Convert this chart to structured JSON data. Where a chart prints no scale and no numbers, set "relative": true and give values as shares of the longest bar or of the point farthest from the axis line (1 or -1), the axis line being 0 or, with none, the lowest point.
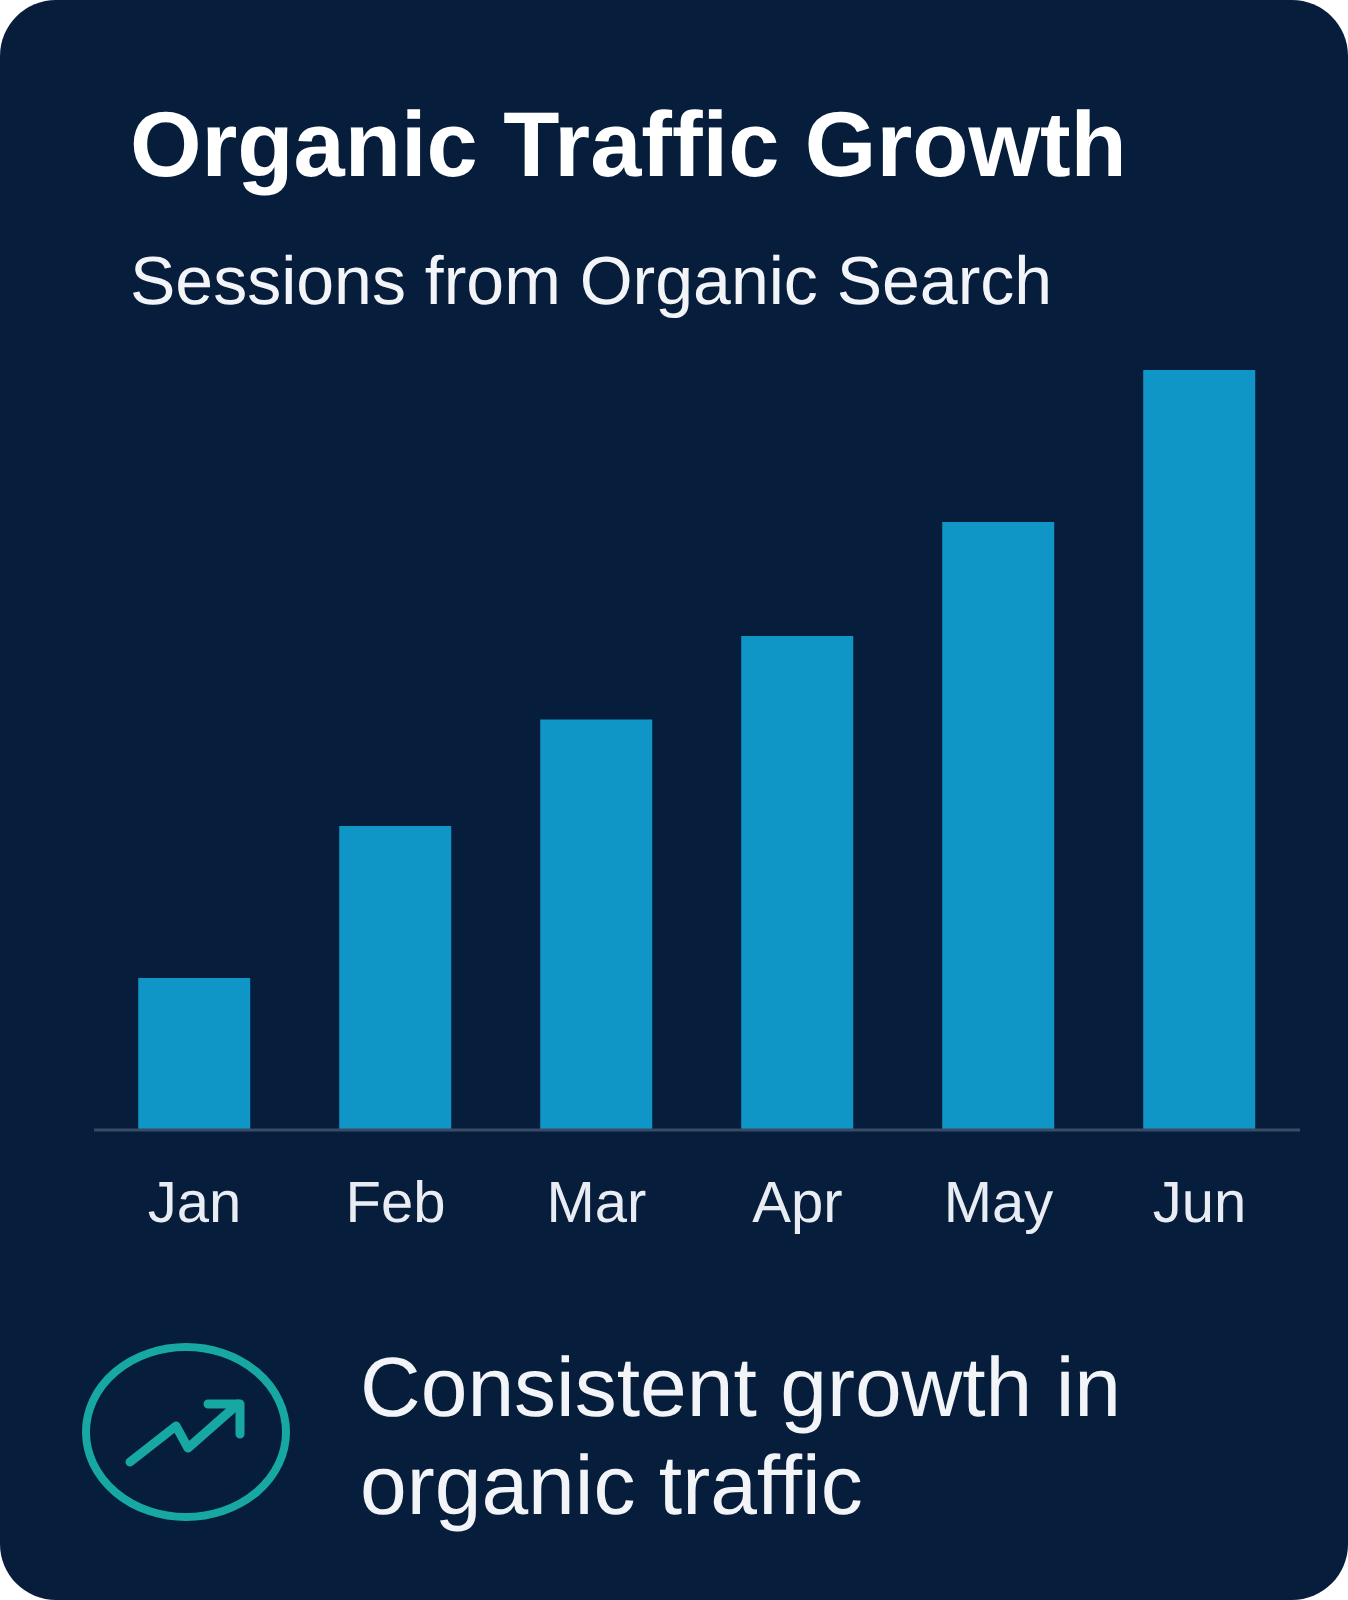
{
  "chart_data": {
    "type": "bar",
    "title": "Organic Traffic Growth",
    "subtitle": "Sessions from Organic Search",
    "categories": [
      "Jan",
      "Feb",
      "Mar",
      "Apr",
      "May",
      "Jun"
    ],
    "values": [
      0.2,
      0.4,
      0.54,
      0.65,
      0.8,
      1
    ],
    "color": "#0f95c6",
    "relative": true,
    "annotations": [
      "Consistent growth in organic traffic"
    ]
  }
}
